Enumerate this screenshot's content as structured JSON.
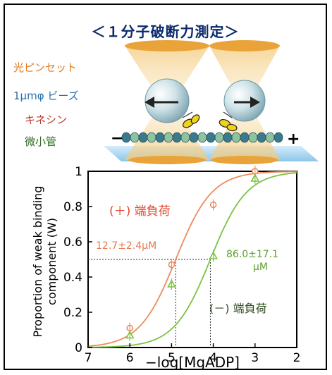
{
  "title": "＜１分子破断力測定＞",
  "labels": {
    "optical_tweezers": "光ピンセット",
    "beads": "1μmφ ビーズ",
    "kinesin": "キネシン",
    "microtubule": "微小管",
    "minus": "−",
    "plus": "+"
  },
  "colors": {
    "title": "#0a2a6b",
    "optical_tweezers": "#e07b20",
    "beads": "#2a6fb0",
    "kinesin": "#c0392b",
    "microtubule": "#2e6b1f",
    "plus_series": "#f08a5d",
    "minus_series": "#7cc241"
  },
  "chart_data": {
    "type": "scatter",
    "xlabel": "−log[MgADP]",
    "ylabel_line1": "Proportion of weak binding",
    "ylabel_line2": "component (W)",
    "xlim": [
      7,
      2
    ],
    "ylim": [
      0,
      1
    ],
    "x_ticks": [
      "7",
      "6",
      "5",
      "4",
      "3",
      "2"
    ],
    "y_ticks": [
      "0",
      "0.2",
      "0.4",
      "0.6",
      "0.8",
      "1"
    ],
    "series": [
      {
        "name": "(＋) 端負荷",
        "color": "#f08a5d",
        "points": [
          [
            6,
            0.11
          ],
          [
            5,
            0.47
          ],
          [
            4,
            0.81
          ],
          [
            3,
            1.0
          ]
        ],
        "midpoint_x": 4.9,
        "midpoint_label": "12.7±2.4μM"
      },
      {
        "name": "(－) 端負荷",
        "color": "#7cc241",
        "points": [
          [
            6,
            0.07
          ],
          [
            5,
            0.36
          ],
          [
            4,
            0.52
          ],
          [
            3,
            0.96
          ]
        ],
        "midpoint_x": 4.07,
        "midpoint_label_line1": "86.0±17.1",
        "midpoint_label_line2": "μM"
      }
    ]
  }
}
